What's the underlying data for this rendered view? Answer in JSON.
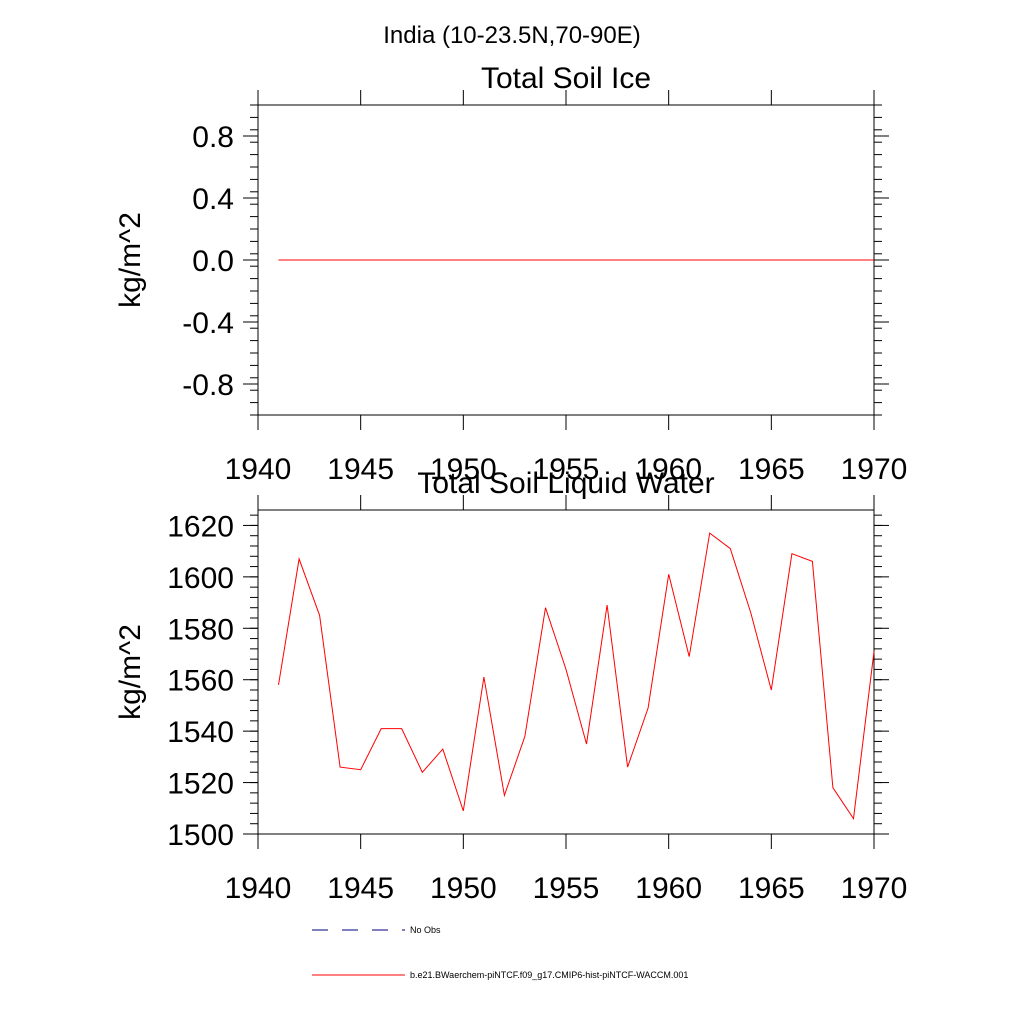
{
  "figure": {
    "title": "India (10-23.5N,70-90E)"
  },
  "colors": {
    "model": "#ff0000",
    "obs": "#000080",
    "axis": "#000000"
  },
  "chart_data": [
    {
      "type": "line",
      "title": "Total Soil Ice",
      "xlabel": "",
      "ylabel": "kg/m^2",
      "xlim": [
        1940,
        1970
      ],
      "ylim": [
        -1.0,
        1.0
      ],
      "x_ticks": [
        1940,
        1945,
        1950,
        1955,
        1960,
        1965,
        1970
      ],
      "y_ticks": [
        -0.8,
        -0.4,
        0.0,
        0.4,
        0.8
      ],
      "y_tick_labels": [
        "-0.8",
        "-0.4",
        "0.0",
        "0.4",
        "0.8"
      ],
      "grid": false,
      "series": [
        {
          "name": "b.e21.BWaerchem-piNTCF.f09_g17.CMIP6-hist-piNTCF-WACCM.001",
          "x": [
            1941,
            1942,
            1943,
            1944,
            1945,
            1946,
            1947,
            1948,
            1949,
            1950,
            1951,
            1952,
            1953,
            1954,
            1955,
            1956,
            1957,
            1958,
            1959,
            1960,
            1961,
            1962,
            1963,
            1964,
            1965,
            1966,
            1967,
            1968,
            1969,
            1970
          ],
          "values": [
            0,
            0,
            0,
            0,
            0,
            0,
            0,
            0,
            0,
            0,
            0,
            0,
            0,
            0,
            0,
            0,
            0,
            0,
            0,
            0,
            0,
            0,
            0,
            0,
            0,
            0,
            0,
            0,
            0,
            0
          ]
        }
      ]
    },
    {
      "type": "line",
      "title": "Total Soil Liquid Water",
      "xlabel": "",
      "ylabel": "kg/m^2",
      "xlim": [
        1940,
        1970
      ],
      "ylim": [
        1500,
        1626
      ],
      "x_ticks": [
        1940,
        1945,
        1950,
        1955,
        1960,
        1965,
        1970
      ],
      "y_ticks": [
        1500,
        1520,
        1540,
        1560,
        1580,
        1600,
        1620
      ],
      "y_tick_labels": [
        "1500",
        "1520",
        "1540",
        "1560",
        "1580",
        "1600",
        "1620"
      ],
      "grid": false,
      "series": [
        {
          "name": "b.e21.BWaerchem-piNTCF.f09_g17.CMIP6-hist-piNTCF-WACCM.001",
          "x": [
            1941,
            1942,
            1943,
            1944,
            1945,
            1946,
            1947,
            1948,
            1949,
            1950,
            1951,
            1952,
            1953,
            1954,
            1955,
            1956,
            1957,
            1958,
            1959,
            1960,
            1961,
            1962,
            1963,
            1964,
            1965,
            1966,
            1967,
            1968,
            1969,
            1970
          ],
          "values": [
            1558,
            1607,
            1585,
            1526,
            1525,
            1541,
            1541,
            1524,
            1533,
            1509,
            1561,
            1515,
            1538,
            1588,
            1564,
            1535,
            1589,
            1526,
            1549,
            1601,
            1569,
            1617,
            1611,
            1586,
            1556,
            1609,
            1606,
            1518,
            1506,
            1571
          ]
        }
      ]
    }
  ],
  "legend": {
    "placement": "bottom-left",
    "entries": [
      {
        "label": "No Obs",
        "style": "dashed",
        "color": "#000080"
      },
      {
        "label": "b.e21.BWaerchem-piNTCF.f09_g17.CMIP6-hist-piNTCF-WACCM.001",
        "style": "solid",
        "color": "#ff0000"
      }
    ]
  }
}
